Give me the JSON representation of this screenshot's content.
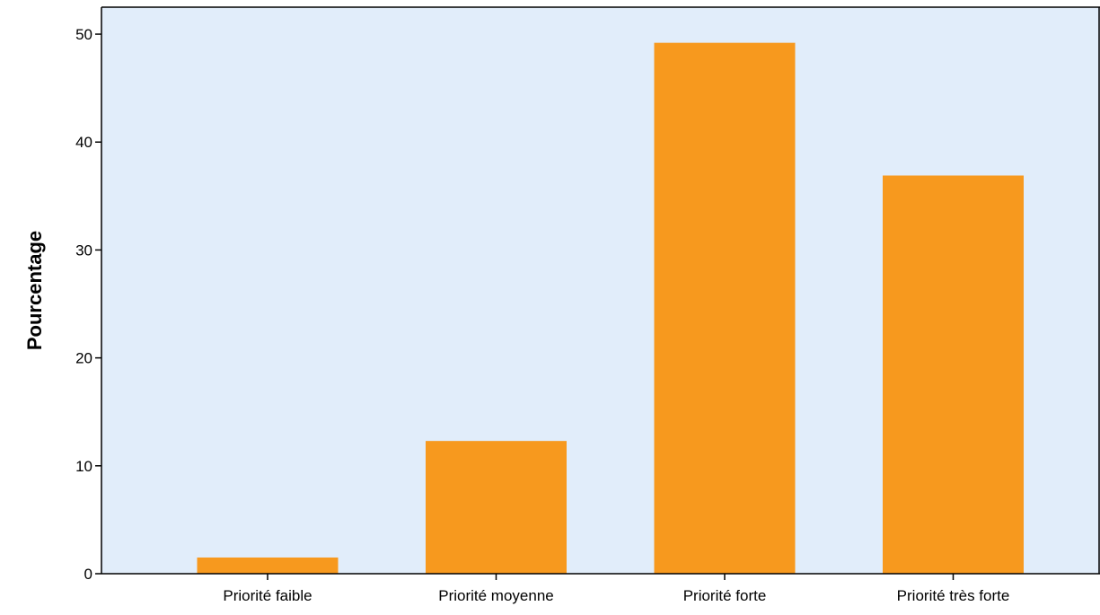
{
  "chart_data": {
    "type": "bar",
    "title": "",
    "xlabel": "",
    "ylabel": "Pourcentage",
    "categories": [
      "Priorité faible",
      "Priorité moyenne",
      "Priorité forte",
      "Priorité très forte"
    ],
    "values": [
      1.5,
      12.3,
      49.2,
      36.9
    ],
    "ylim": [
      0,
      52.5
    ],
    "yticks": [
      0,
      10,
      20,
      30,
      40,
      50
    ],
    "grid": false,
    "legend": "none",
    "colors": {
      "bar": "#F7991E",
      "plot_background": "#E1EDFA",
      "axis": "#000000"
    }
  }
}
